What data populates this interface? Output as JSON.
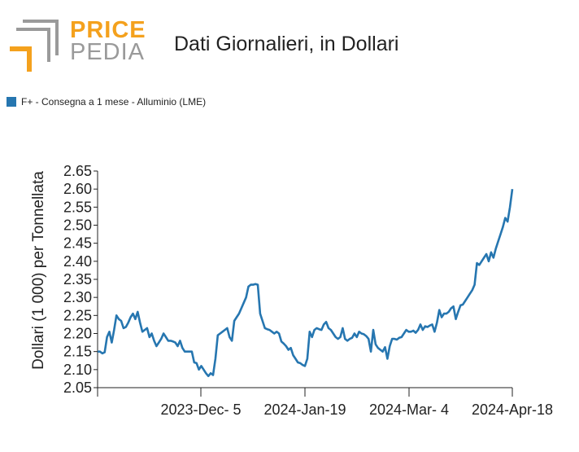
{
  "header": {
    "logo_top": "PRICE",
    "logo_bottom": "PEDIA",
    "title": "Dati Giornalieri, in Dollari"
  },
  "colors": {
    "series": "#2676b0",
    "logo_orange": "#f4a11d",
    "logo_gray": "#9a9a9a"
  },
  "chart_data": {
    "type": "line",
    "ylabel": "Dollari (1 000) per Tonnellata",
    "xlabel": "",
    "ylim": [
      2.05,
      2.65
    ],
    "y_ticks": [
      "2.65",
      "2.60",
      "2.55",
      "2.50",
      "2.45",
      "2.40",
      "2.35",
      "2.30",
      "2.25",
      "2.20",
      "2.15",
      "2.10",
      "2.05"
    ],
    "x_tick_labels": [
      "2023-Dec- 5",
      "2024-Jan-19",
      "2024-Mar- 4",
      "2024-Apr-18"
    ],
    "legend": "top-left",
    "series": [
      {
        "name": "F+ - Consegna a 1 mese - Alluminio (LME)",
        "values": [
          2.15,
          2.15,
          2.145,
          2.148,
          2.19,
          2.205,
          2.175,
          2.21,
          2.25,
          2.24,
          2.235,
          2.215,
          2.218,
          2.23,
          2.245,
          2.255,
          2.24,
          2.26,
          2.23,
          2.205,
          2.21,
          2.215,
          2.19,
          2.2,
          2.18,
          2.165,
          2.175,
          2.185,
          2.2,
          2.19,
          2.18,
          2.18,
          2.178,
          2.175,
          2.165,
          2.18,
          2.16,
          2.15,
          2.15,
          2.15,
          2.15,
          2.12,
          2.118,
          2.1,
          2.11,
          2.1,
          2.09,
          2.082,
          2.09,
          2.085,
          2.13,
          2.195,
          2.2,
          2.205,
          2.21,
          2.215,
          2.19,
          2.18,
          2.235,
          2.245,
          2.255,
          2.27,
          2.285,
          2.3,
          2.33,
          2.335,
          2.335,
          2.337,
          2.335,
          2.255,
          2.235,
          2.215,
          2.212,
          2.21,
          2.205,
          2.2,
          2.205,
          2.2,
          2.178,
          2.172,
          2.165,
          2.155,
          2.16,
          2.14,
          2.13,
          2.12,
          2.118,
          2.113,
          2.11,
          2.13,
          2.205,
          2.19,
          2.21,
          2.215,
          2.212,
          2.21,
          2.225,
          2.232,
          2.215,
          2.21,
          2.2,
          2.19,
          2.185,
          2.19,
          2.215,
          2.185,
          2.18,
          2.185,
          2.188,
          2.2,
          2.19,
          2.205,
          2.2,
          2.198,
          2.193,
          2.185,
          2.15,
          2.21,
          2.17,
          2.16,
          2.155,
          2.15,
          2.162,
          2.13,
          2.165,
          2.185,
          2.185,
          2.183,
          2.188,
          2.19,
          2.2,
          2.21,
          2.205,
          2.205,
          2.208,
          2.202,
          2.21,
          2.225,
          2.21,
          2.22,
          2.218,
          2.222,
          2.225,
          2.205,
          2.23,
          2.265,
          2.245,
          2.255,
          2.255,
          2.26,
          2.27,
          2.275,
          2.24,
          2.26,
          2.278,
          2.28,
          2.29,
          2.3,
          2.31,
          2.32,
          2.335,
          2.395,
          2.39,
          2.4,
          2.41,
          2.42,
          2.4,
          2.425,
          2.41,
          2.435,
          2.455,
          2.475,
          2.495,
          2.52,
          2.51,
          2.55,
          2.6
        ]
      }
    ]
  }
}
